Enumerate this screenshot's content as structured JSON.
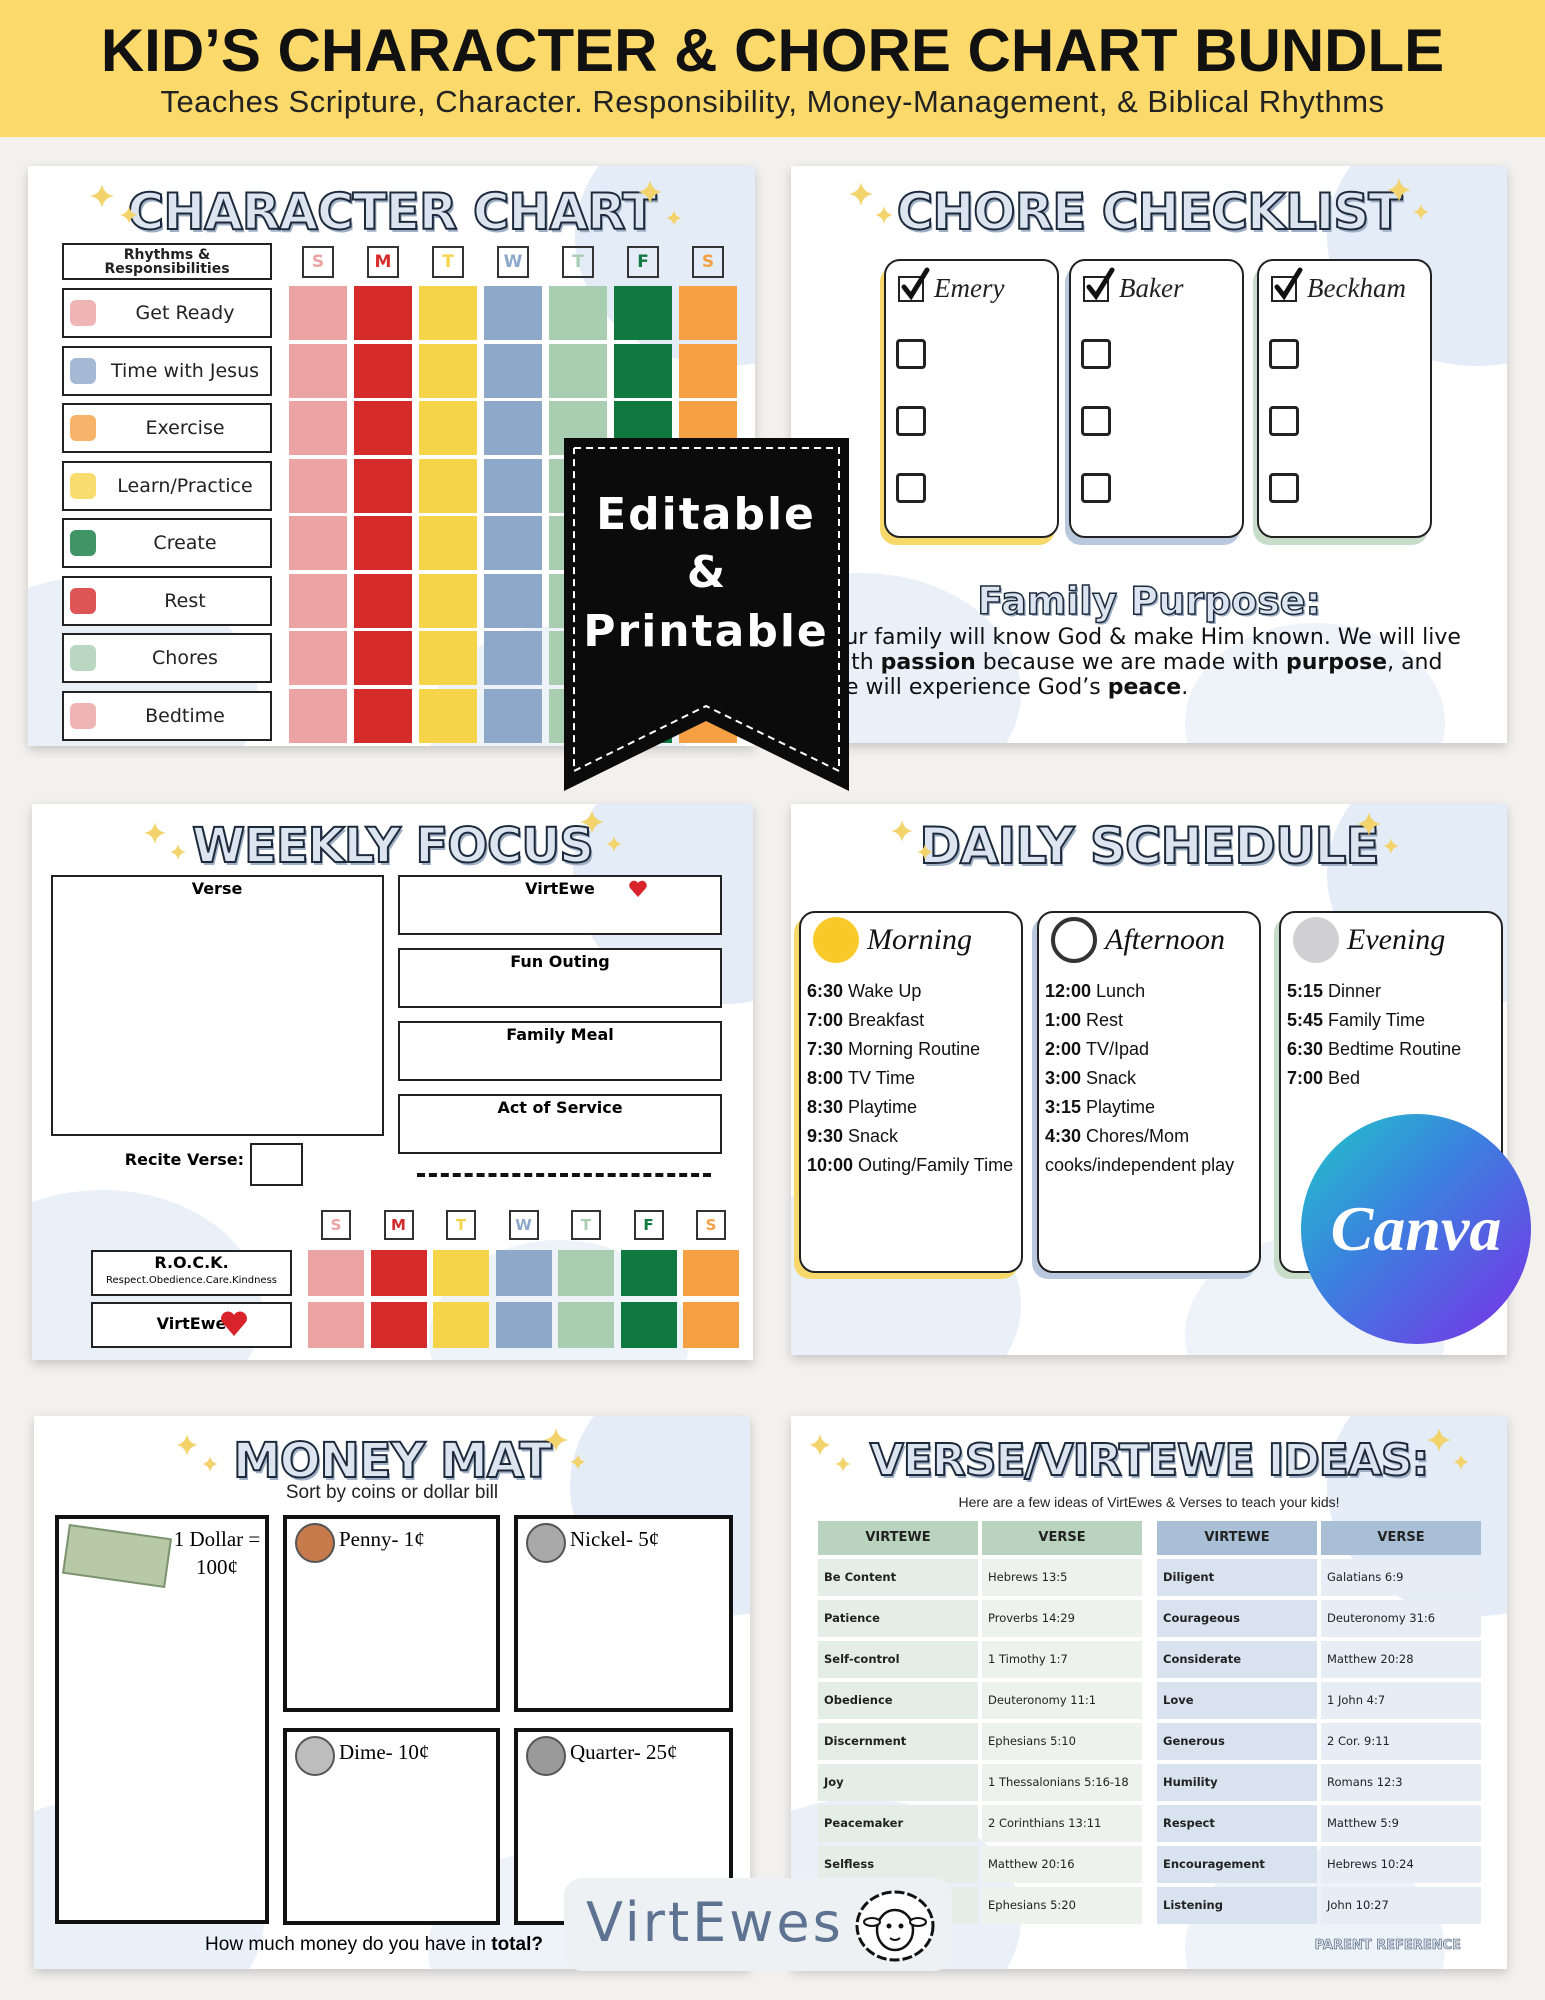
{
  "header": {
    "title": "KID’S CHARACTER & CHORE CHART BUNDLE",
    "subtitle": "Teaches Scripture, Character. Responsibility, Money-Management, & Biblical Rhythms"
  },
  "day_colors": [
    "#eba3a3",
    "#d62b2b",
    "#f6d44a",
    "#8ea8c9",
    "#a9cdb1",
    "#10793f",
    "#f4a043"
  ],
  "character_chart": {
    "title": "CHARACTER CHART",
    "header_label": "Rhythms & Responsibilities",
    "days": [
      "S",
      "M",
      "T",
      "W",
      "T",
      "F",
      "S"
    ],
    "rows": [
      "Get Ready",
      "Time with Jesus",
      "Exercise",
      "Learn/Practice",
      "Create",
      "Rest",
      "Chores",
      "Bedtime"
    ]
  },
  "badge": {
    "line1": "Editable",
    "line2": "&",
    "line3": "Printable"
  },
  "chore_checklist": {
    "title": "CHORE CHECKLIST",
    "names": [
      "Emery",
      "Baker",
      "Beckham"
    ],
    "purpose_title": "Family Purpose:",
    "purpose_segments": [
      "Our family will know God & make Him known. We will live with ",
      "passion",
      " because we are made with ",
      "purpose",
      ", and we will experience God’s ",
      "peace",
      "."
    ]
  },
  "weekly_focus": {
    "title": "WEEKLY FOCUS",
    "verse_label": "Verse",
    "boxes": [
      "VirtEwe",
      "Fun Outing",
      "Family Meal",
      "Act of Service"
    ],
    "recite_label": "Recite Verse:",
    "days": [
      "S",
      "M",
      "T",
      "W",
      "T",
      "F",
      "S"
    ],
    "rows": [
      {
        "label": "R.O.C.K.",
        "sub": "Respect.Obedience.Care.Kindness"
      },
      {
        "label": "VirtEwe"
      }
    ]
  },
  "daily_schedule": {
    "title": "DAILY SCHEDULE",
    "columns": [
      {
        "name": "Morning",
        "items": [
          {
            "time": "6:30",
            "text": "Wake Up"
          },
          {
            "time": "7:00",
            "text": "Breakfast"
          },
          {
            "time": "7:30",
            "text": "Morning Routine"
          },
          {
            "time": "8:00",
            "text": "TV Time"
          },
          {
            "time": "8:30",
            "text": "Playtime"
          },
          {
            "time": "9:30",
            "text": "Snack"
          },
          {
            "time": "10:00",
            "text": "Outing/Family Time"
          }
        ]
      },
      {
        "name": "Afternoon",
        "items": [
          {
            "time": "12:00",
            "text": "Lunch"
          },
          {
            "time": "1:00",
            "text": "Rest"
          },
          {
            "time": "2:00",
            "text": "TV/Ipad"
          },
          {
            "time": "3:00",
            "text": "Snack"
          },
          {
            "time": "3:15",
            "text": "Playtime"
          },
          {
            "time": "4:30",
            "text": "Chores/Mom cooks/independent play"
          }
        ]
      },
      {
        "name": "Evening",
        "items": [
          {
            "time": "5:15",
            "text": "Dinner"
          },
          {
            "time": "5:45",
            "text": "Family Time"
          },
          {
            "time": "6:30",
            "text": "Bedtime Routine"
          },
          {
            "time": "7:00",
            "text": "Bed"
          }
        ]
      }
    ]
  },
  "canva": "Canva",
  "money_mat": {
    "title": "MONEY MAT",
    "subtitle": "Sort by coins or dollar bill",
    "boxes": [
      "1 Dollar = 100¢",
      "Penny- 1¢",
      "Nickel- 5¢",
      "Dime- 10¢",
      "Quarter- 25¢"
    ],
    "footer": "How much money do you have in ",
    "footer_bold": "total?"
  },
  "logo": "VirtEwes",
  "verse_ideas": {
    "title": "VERSE/VIRTEWE IDEAS:",
    "subtitle": "Here are a few ideas of VirtEwes & Verses to teach your kids!",
    "tables": [
      {
        "headers": [
          "VIRTEWE",
          "VERSE"
        ],
        "rows": [
          [
            "Be Content",
            "Hebrews 13:5"
          ],
          [
            "Patience",
            "Proverbs 14:29"
          ],
          [
            "Self-control",
            "1 Timothy 1:7"
          ],
          [
            "Obedience",
            "Deuteronomy 11:1"
          ],
          [
            "Discernment",
            "Ephesians 5:10"
          ],
          [
            "Joy",
            "1 Thessalonians 5:16-18"
          ],
          [
            "Peacemaker",
            "2 Corinthians 13:11"
          ],
          [
            "Selfless",
            "Matthew 20:16"
          ],
          [
            null,
            "Ephesians 5:20"
          ]
        ]
      },
      {
        "headers": [
          "VIRTEWE",
          "VERSE"
        ],
        "rows": [
          [
            "Diligent",
            "Galatians 6:9"
          ],
          [
            "Courageous",
            "Deuteronomy 31:6"
          ],
          [
            "Considerate",
            "Matthew 20:28"
          ],
          [
            "Love",
            "1 John 4:7"
          ],
          [
            "Generous",
            "2 Cor. 9:11"
          ],
          [
            "Humility",
            "Romans 12:3"
          ],
          [
            "Respect",
            "Matthew 5:9"
          ],
          [
            "Encouragement",
            "Hebrews 10:24"
          ],
          [
            "Listening",
            "John 10:27"
          ]
        ]
      }
    ],
    "footer": "PARENT REFERENCE"
  }
}
